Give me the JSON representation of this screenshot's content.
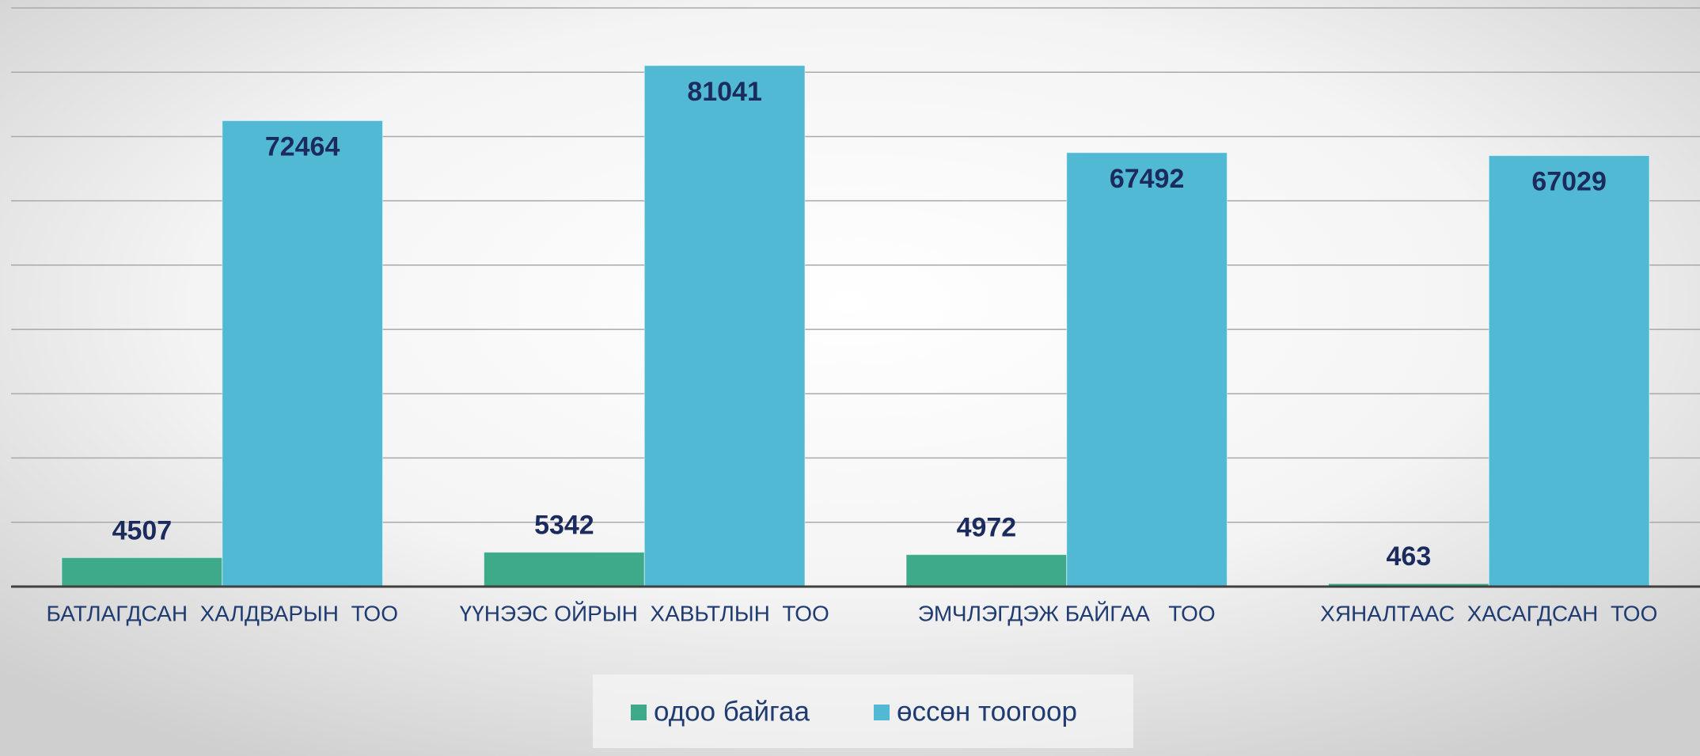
{
  "chart_data": {
    "type": "bar",
    "categories": [
      "БАТЛАГДСАН  ХАЛДВАРЫН  ТОО",
      "ҮҮНЭЭС ОЙРЫН  ХАВЬТЛЫН  ТОО",
      "ЭМЧЛЭГДЭЖ БАЙГАА   ТОО",
      "ХЯНАЛТААС  ХАСАГДСАН  ТОО"
    ],
    "series": [
      {
        "name": "одоо байгаа",
        "color": "#3eaa8a",
        "values": [
          4507,
          5342,
          4972,
          463
        ]
      },
      {
        "name": "өссөн тоогоор",
        "color": "#52b9d5",
        "values": [
          72464,
          81041,
          67492,
          67029
        ]
      }
    ],
    "ylim": [
      0,
      90000
    ],
    "yticks": [
      0,
      10000,
      20000,
      30000,
      40000,
      50000,
      60000,
      70000,
      80000,
      90000
    ],
    "grid": true
  }
}
